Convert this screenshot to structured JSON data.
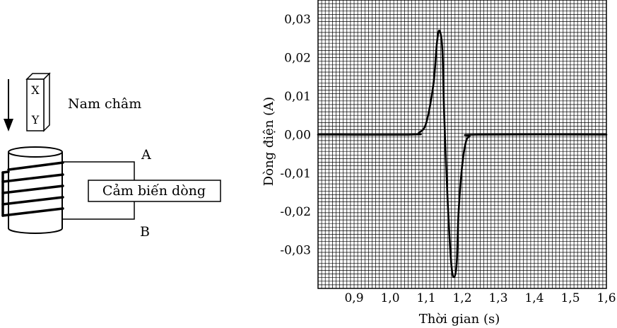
{
  "apparatus": {
    "magnet_label": "Nam châm",
    "pole_top": "X",
    "pole_bottom": "Y",
    "terminal_a": "A",
    "terminal_b": "B",
    "sensor_label": "Cảm biến dòng"
  },
  "chart_data": {
    "type": "line",
    "xlabel": "Thời gian (s)",
    "ylabel": "Dòng điện (A)",
    "xlim": [
      0.8,
      1.6
    ],
    "ylim": [
      -0.04,
      0.035
    ],
    "x_ticks": [
      "0,9",
      "1,0",
      "1,1",
      "1,2",
      "1,3",
      "1,4",
      "1,5",
      "1,6"
    ],
    "y_ticks": [
      "0,03",
      "0,02",
      "0,01",
      "0,00",
      "-0,01",
      "-0,02",
      "-0,03"
    ],
    "grid": true,
    "series": [
      {
        "x": [
          0.8,
          1.06,
          1.08,
          1.1,
          1.12,
          1.13,
          1.137,
          1.145,
          1.15,
          1.16,
          1.17,
          1.178,
          1.185,
          1.19,
          1.2,
          1.21,
          1.22,
          1.24,
          1.6
        ],
        "y": [
          0.0,
          0.0,
          0.0005,
          0.003,
          0.013,
          0.024,
          0.027,
          0.022,
          0.005,
          -0.018,
          -0.034,
          -0.037,
          -0.033,
          -0.02,
          -0.008,
          -0.002,
          -0.0005,
          0.0,
          0.0
        ]
      }
    ]
  }
}
